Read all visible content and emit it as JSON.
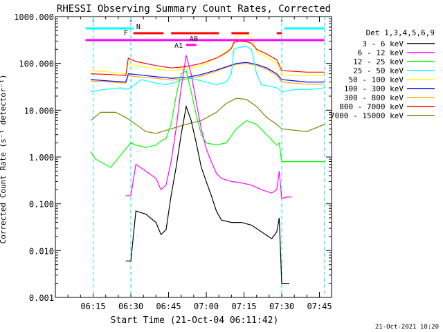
{
  "chart_data": {
    "type": "line",
    "title": "RHESSI Observing Summary Count Rates, Corrected",
    "xlabel": "Start Time (21-Oct-04 06:11:42)",
    "ylabel": "Corrected Count Rate (s⁻¹ detector⁻¹)",
    "yscale": "log",
    "ylim": [
      0.001,
      1000
    ],
    "xlim_minutes": [
      6.0,
      7.83
    ],
    "x_tick_labels": [
      "06:15",
      "06:30",
      "06:45",
      "07:00",
      "07:15",
      "07:30",
      "07:45"
    ],
    "y_tick_labels": [
      "1000.000",
      "100.000",
      "10.000",
      "1.000",
      "0.100",
      "0.010",
      "0.001"
    ],
    "legend_title": "Det 1,3,4,5,6,9",
    "legend_position": "right",
    "footer": "21-Oct-2021 18:20",
    "markers": {
      "N": "N",
      "F": "F",
      "A1": "A1",
      "A0": "A0"
    },
    "vlines_time": [
      "06:15",
      "06:30",
      "07:30",
      "07:47"
    ],
    "series": [
      {
        "name": "3 - 6 keV",
        "color": "#000000",
        "x": [
          "06:28",
          "06:30",
          "06:32",
          "06:36",
          "06:40",
          "06:42",
          "06:44",
          "06:46",
          "06:48",
          "06:50",
          "06:52",
          "06:54",
          "06:56",
          "06:58",
          "07:00",
          "07:02",
          "07:04",
          "07:06",
          "07:10",
          "07:14",
          "07:18",
          "07:22",
          "07:26",
          "07:28",
          "07:29",
          "07:30",
          "07:31",
          "07:33"
        ],
        "y": [
          0.006,
          0.006,
          0.07,
          0.06,
          0.04,
          0.022,
          0.028,
          0.15,
          0.6,
          3,
          12,
          6,
          2,
          0.6,
          0.3,
          0.15,
          0.07,
          0.045,
          0.04,
          0.04,
          0.035,
          0.025,
          0.018,
          0.025,
          0.05,
          0.002,
          0.002,
          0.002
        ]
      },
      {
        "name": "6 - 12 keV",
        "color": "#ff00ff",
        "x": [
          "06:28",
          "06:30",
          "06:32",
          "06:36",
          "06:40",
          "06:42",
          "06:44",
          "06:46",
          "06:48",
          "06:50",
          "06:52",
          "06:54",
          "06:56",
          "06:58",
          "07:00",
          "07:02",
          "07:04",
          "07:06",
          "07:10",
          "07:14",
          "07:18",
          "07:22",
          "07:26",
          "07:28",
          "07:29",
          "07:30",
          "07:32",
          "07:34"
        ],
        "y": [
          0.15,
          0.15,
          0.7,
          0.5,
          0.35,
          0.2,
          0.25,
          0.8,
          4,
          30,
          150,
          60,
          15,
          4,
          1.5,
          0.8,
          0.45,
          0.35,
          0.3,
          0.28,
          0.25,
          0.2,
          0.17,
          0.2,
          0.5,
          0.13,
          0.14,
          0.14
        ]
      },
      {
        "name": "12 - 25 keV",
        "color": "#00ff00",
        "x": [
          "06:14",
          "06:16",
          "06:22",
          "06:30",
          "06:32",
          "06:36",
          "06:40",
          "06:42",
          "06:44",
          "06:46",
          "06:48",
          "06:50",
          "06:52",
          "06:54",
          "06:56",
          "06:58",
          "07:00",
          "07:04",
          "07:08",
          "07:12",
          "07:16",
          "07:20",
          "07:24",
          "07:28",
          "07:29",
          "07:30",
          "07:35",
          "07:40",
          "07:47"
        ],
        "y": [
          1.3,
          0.9,
          0.6,
          2,
          1.8,
          1.6,
          1.8,
          2.2,
          2.5,
          5,
          20,
          60,
          70,
          25,
          8,
          3,
          2,
          1.8,
          2,
          4,
          6,
          5,
          3,
          1.8,
          2,
          0.8,
          0.8,
          0.8,
          0.8
        ]
      },
      {
        "name": "25 - 50 keV",
        "color": "#00ffff",
        "x": [
          "06:14",
          "06:20",
          "06:26",
          "06:28",
          "06:30",
          "06:34",
          "06:40",
          "06:44",
          "06:48",
          "06:52",
          "06:56",
          "07:00",
          "07:04",
          "07:08",
          "07:10",
          "07:11",
          "07:13",
          "07:16",
          "07:18",
          "07:20",
          "07:22",
          "07:26",
          "07:28",
          "07:29",
          "07:30",
          "07:36",
          "07:42",
          "07:47"
        ],
        "y": [
          25,
          28,
          30,
          28,
          30,
          45,
          38,
          35,
          40,
          50,
          45,
          40,
          35,
          40,
          60,
          200,
          220,
          230,
          200,
          60,
          35,
          32,
          30,
          28,
          25,
          28,
          28,
          30
        ]
      },
      {
        "name": "50 - 100 keV",
        "color": "#ffff00",
        "x": [
          "06:14",
          "06:22",
          "06:28",
          "06:29",
          "06:32",
          "06:40",
          "06:46",
          "06:52",
          "06:58",
          "07:04",
          "07:08",
          "07:10",
          "07:11",
          "07:13",
          "07:16",
          "07:18",
          "07:20",
          "07:24",
          "07:28",
          "07:30",
          "07:40",
          "07:47"
        ],
        "y": [
          70,
          65,
          60,
          100,
          90,
          75,
          70,
          75,
          90,
          130,
          180,
          220,
          300,
          420,
          420,
          350,
          180,
          140,
          100,
          55,
          55,
          55
        ]
      },
      {
        "name": "100 - 300 keV",
        "color": "#0000ff",
        "x": [
          "06:14",
          "06:22",
          "06:28",
          "06:29",
          "06:32",
          "06:40",
          "06:46",
          "06:52",
          "06:58",
          "07:04",
          "07:08",
          "07:12",
          "07:16",
          "07:20",
          "07:24",
          "07:28",
          "07:30",
          "07:40",
          "07:47"
        ],
        "y": [
          45,
          42,
          40,
          60,
          58,
          52,
          48,
          50,
          58,
          72,
          85,
          100,
          105,
          95,
          80,
          60,
          45,
          40,
          40
        ]
      },
      {
        "name": "300 - 800 keV",
        "color": "#ffa500",
        "x": [
          "06:14",
          "06:22",
          "06:28",
          "06:29",
          "06:32",
          "06:40",
          "06:46",
          "06:52",
          "06:58",
          "07:04",
          "07:08",
          "07:12",
          "07:16",
          "07:20",
          "07:24",
          "07:28",
          "07:30",
          "07:40",
          "07:47"
        ],
        "y": [
          42,
          40,
          38,
          55,
          52,
          48,
          44,
          46,
          54,
          68,
          82,
          95,
          100,
          90,
          75,
          55,
          40,
          36,
          36
        ]
      },
      {
        "name": "800 - 7000 keV",
        "color": "#ff0000",
        "x": [
          "06:14",
          "06:22",
          "06:28",
          "06:29",
          "06:32",
          "06:40",
          "06:46",
          "06:52",
          "06:58",
          "07:04",
          "07:08",
          "07:10",
          "07:11",
          "07:13",
          "07:16",
          "07:18",
          "07:20",
          "07:24",
          "07:28",
          "07:30",
          "07:40",
          "07:47"
        ],
        "y": [
          60,
          58,
          55,
          130,
          110,
          90,
          80,
          85,
          100,
          130,
          170,
          210,
          280,
          300,
          290,
          270,
          200,
          160,
          120,
          70,
          65,
          65
        ]
      },
      {
        "name": "7000 - 15000 keV",
        "color": "#808000",
        "x": [
          "06:14",
          "06:18",
          "06:24",
          "06:28",
          "06:32",
          "06:36",
          "06:40",
          "06:46",
          "06:52",
          "06:58",
          "07:04",
          "07:08",
          "07:12",
          "07:16",
          "07:20",
          "07:24",
          "07:28",
          "07:30",
          "07:40",
          "07:47"
        ],
        "y": [
          6,
          9,
          9,
          7,
          5,
          3.5,
          3.2,
          4,
          5,
          6,
          9,
          14,
          18,
          17,
          12,
          7,
          5,
          4,
          3.5,
          5
        ]
      }
    ],
    "flag_bars": [
      {
        "name": "N",
        "color": "#00ffff",
        "segments": [
          [
            "06:12",
            "06:31"
          ],
          [
            "07:31",
            "07:47"
          ]
        ]
      },
      {
        "name": "F",
        "color": "#ff0000",
        "segments": [
          [
            "06:31",
            "06:43"
          ],
          [
            "06:46",
            "07:05"
          ],
          [
            "07:10",
            "07:17"
          ],
          [
            "07:28",
            "07:30"
          ]
        ]
      },
      {
        "name": "A1",
        "color": "#ff00ff",
        "segments": [
          [
            "06:52",
            "06:56"
          ]
        ]
      },
      {
        "name": "baseline",
        "color": "#ff00ff",
        "segments": [
          [
            "06:12",
            "07:47"
          ]
        ]
      }
    ]
  }
}
